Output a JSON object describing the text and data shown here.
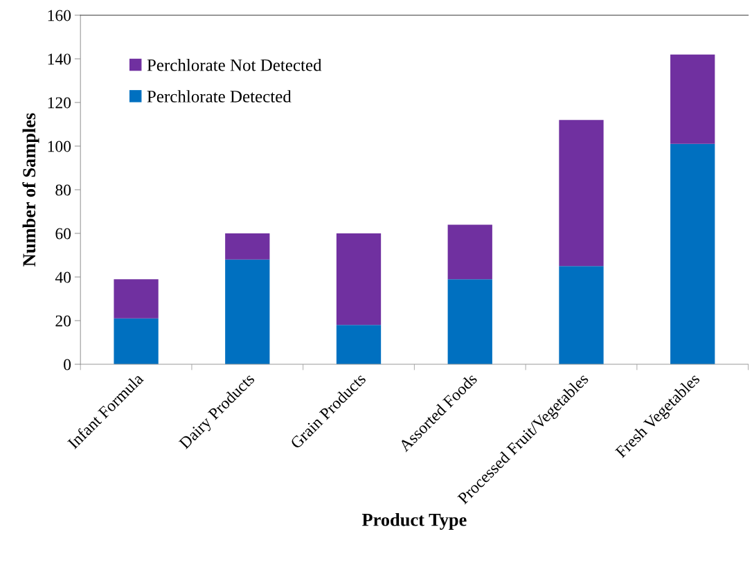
{
  "chart_data": {
    "type": "bar",
    "stacked": true,
    "xlabel": "Product Type",
    "ylabel": "Number of Samples",
    "categories": [
      "Infant Formula",
      "Dairy Products",
      "Grain Products",
      "Assorted Foods",
      "Processed Fruit/Vegetables",
      "Fresh Vegetables"
    ],
    "series": [
      {
        "name": "Perchlorate Detected",
        "color": "#0070c0",
        "values": [
          21,
          48,
          18,
          39,
          45,
          101
        ]
      },
      {
        "name": "Perchlorate Not Detected",
        "color": "#7030a0",
        "values": [
          18,
          12,
          42,
          25,
          67,
          41
        ]
      }
    ],
    "ylim": [
      0,
      160
    ],
    "yticks": [
      0,
      20,
      40,
      60,
      80,
      100,
      120,
      140,
      160
    ],
    "grid": false,
    "legend": "top left"
  }
}
